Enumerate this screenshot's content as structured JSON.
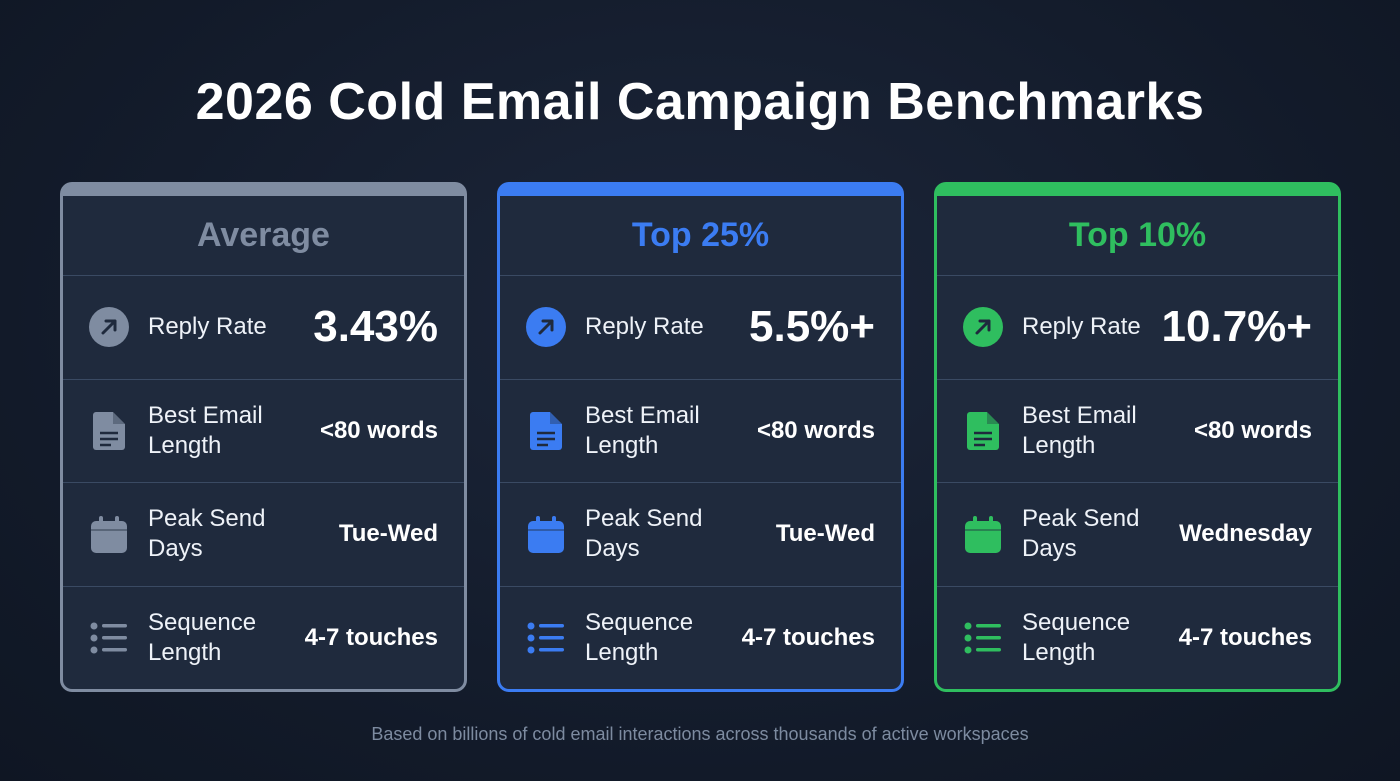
{
  "title": "2026 Cold Email Campaign Benchmarks",
  "footer": "Based on billions of cold email interactions across thousands of active workspaces",
  "tiers": [
    {
      "name": "Average",
      "color": "#7f8ca1",
      "metrics": [
        {
          "icon": "arrow-up-right-icon",
          "label": "Reply Rate",
          "value": "3.43%"
        },
        {
          "icon": "document-icon",
          "label": "Best Email Length",
          "value": "<80 words"
        },
        {
          "icon": "calendar-icon",
          "label": "Peak Send Days",
          "value": "Tue-Wed"
        },
        {
          "icon": "list-icon",
          "label": "Sequence Length",
          "value": "4-7 touches"
        }
      ]
    },
    {
      "name": "Top 25%",
      "color": "#3b7cf2",
      "metrics": [
        {
          "icon": "arrow-up-right-icon",
          "label": "Reply Rate",
          "value": "5.5%+"
        },
        {
          "icon": "document-icon",
          "label": "Best Email Length",
          "value": "<80 words"
        },
        {
          "icon": "calendar-icon",
          "label": "Peak Send Days",
          "value": "Tue-Wed"
        },
        {
          "icon": "list-icon",
          "label": "Sequence Length",
          "value": "4-7 touches"
        }
      ]
    },
    {
      "name": "Top 10%",
      "color": "#2fbe5f",
      "metrics": [
        {
          "icon": "arrow-up-right-icon",
          "label": "Reply Rate",
          "value": "10.7%+"
        },
        {
          "icon": "document-icon",
          "label": "Best Email Length",
          "value": "<80 words"
        },
        {
          "icon": "calendar-icon",
          "label": "Peak Send Days",
          "value": "Wednesday"
        },
        {
          "icon": "list-icon",
          "label": "Sequence Length",
          "value": "4-7 touches"
        }
      ]
    }
  ]
}
